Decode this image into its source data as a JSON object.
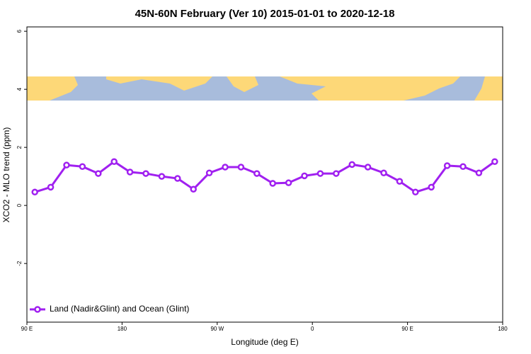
{
  "chart_data": {
    "type": "line",
    "title": "45N-60N February (Ver 10)   2015-01-01 to 2020-12-18",
    "x_label": "Longitude (deg E)",
    "y_label": "XCO2 - MLO trend (ppm)",
    "x": [
      97.5,
      112.5,
      127.5,
      142.5,
      157.5,
      172.5,
      187.5,
      202.5,
      217.5,
      232.5,
      247.5,
      262.5,
      277.5,
      292.5,
      307.5,
      322.5,
      337.5,
      352.5,
      367.5,
      382.5,
      397.5,
      412.5,
      427.5,
      442.5,
      457.5,
      472.5,
      487.5,
      502.5,
      517.5,
      532.5
    ],
    "series": [
      {
        "name": "Land (Nadir&Glint) and Ocean (Glint)",
        "color": "#a020f0",
        "values": [
          0.46,
          0.63,
          1.39,
          1.34,
          1.1,
          1.51,
          1.15,
          1.1,
          1.0,
          0.93,
          0.56,
          1.12,
          1.32,
          1.32,
          1.1,
          0.76,
          0.78,
          1.02,
          1.1,
          1.1,
          1.41,
          1.32,
          1.12,
          0.83,
          0.46,
          0.63,
          1.37,
          1.34,
          1.12,
          1.51
        ]
      }
    ],
    "xlim": [
      90,
      540
    ],
    "xticks": [
      {
        "value": 90,
        "label": "90 E"
      },
      {
        "value": 180,
        "label": "180"
      },
      {
        "value": 270,
        "label": "90 W"
      },
      {
        "value": 360,
        "label": "0"
      },
      {
        "value": 450,
        "label": "90 E"
      },
      {
        "value": 540,
        "label": "180"
      }
    ],
    "ylim": [
      -4.02,
      6.15
    ],
    "yticks": [
      -2,
      0,
      2,
      4,
      6
    ],
    "legend": "bottomleft"
  }
}
